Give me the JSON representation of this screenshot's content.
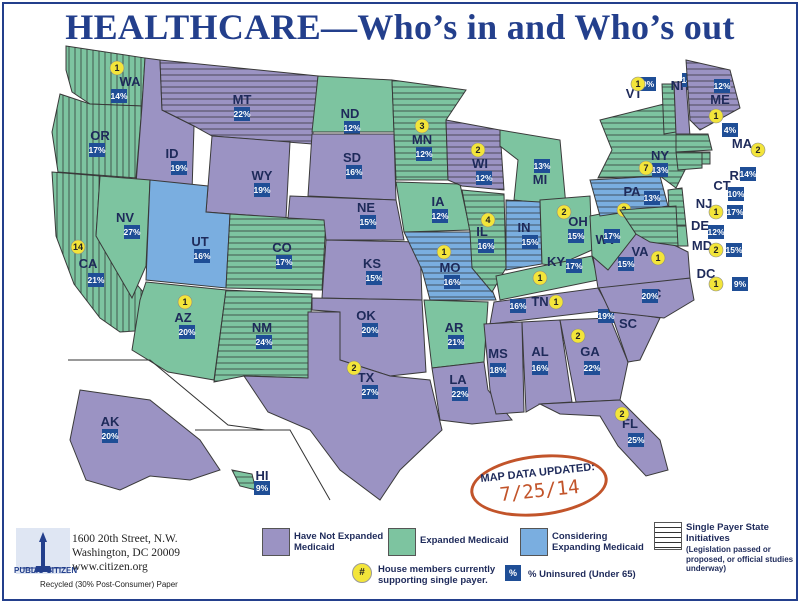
{
  "title": "HEALTHCARE—Who’s in and Who’s out",
  "colors": {
    "not_expanded": "#9b93c3",
    "expanded": "#7dc4a0",
    "considering": "#7aaee0",
    "badge": "#1f4e96",
    "single_payer_marker": "#f3e53a",
    "title": "#233f8c"
  },
  "states": [
    {
      "abbr": "WA",
      "pct": "14%",
      "status": "expanded",
      "single_payer_initiative": true,
      "house_members": "1"
    },
    {
      "abbr": "OR",
      "pct": "17%",
      "status": "expanded",
      "single_payer_initiative": true
    },
    {
      "abbr": "CA",
      "pct": "21%",
      "status": "expanded",
      "single_payer_initiative": true,
      "house_members": "14"
    },
    {
      "abbr": "ID",
      "pct": "19%",
      "status": "not_expanded"
    },
    {
      "abbr": "NV",
      "pct": "27%",
      "status": "expanded"
    },
    {
      "abbr": "MT",
      "pct": "22%",
      "status": "not_expanded",
      "single_payer_initiative": true
    },
    {
      "abbr": "WY",
      "pct": "19%",
      "status": "not_expanded"
    },
    {
      "abbr": "UT",
      "pct": "16%",
      "status": "considering"
    },
    {
      "abbr": "AZ",
      "pct": "20%",
      "status": "expanded",
      "house_members": "1"
    },
    {
      "abbr": "CO",
      "pct": "17%",
      "status": "expanded",
      "single_payer_initiative": true
    },
    {
      "abbr": "NM",
      "pct": "24%",
      "status": "expanded",
      "single_payer_initiative": true
    },
    {
      "abbr": "ND",
      "pct": "12%",
      "status": "expanded"
    },
    {
      "abbr": "SD",
      "pct": "16%",
      "status": "not_expanded"
    },
    {
      "abbr": "NE",
      "pct": "15%",
      "status": "not_expanded"
    },
    {
      "abbr": "KS",
      "pct": "15%",
      "status": "not_expanded"
    },
    {
      "abbr": "OK",
      "pct": "20%",
      "status": "not_expanded"
    },
    {
      "abbr": "TX",
      "pct": "27%",
      "status": "not_expanded",
      "house_members": "2"
    },
    {
      "abbr": "MN",
      "pct": "12%",
      "status": "expanded",
      "single_payer_initiative": true,
      "house_members": "3"
    },
    {
      "abbr": "IA",
      "pct": "12%",
      "status": "expanded"
    },
    {
      "abbr": "MO",
      "pct": "16%",
      "status": "considering",
      "single_payer_initiative": true,
      "house_members": "1"
    },
    {
      "abbr": "AR",
      "pct": "21%",
      "status": "expanded"
    },
    {
      "abbr": "LA",
      "pct": "22%",
      "status": "not_expanded"
    },
    {
      "abbr": "WI",
      "pct": "12%",
      "status": "not_expanded",
      "single_payer_initiative": true,
      "house_members": "2"
    },
    {
      "abbr": "IL",
      "pct": "16%",
      "status": "expanded",
      "single_payer_initiative": true,
      "house_members": "4"
    },
    {
      "abbr": "MI",
      "pct": "13%",
      "status": "expanded"
    },
    {
      "abbr": "IN",
      "pct": "15%",
      "status": "considering",
      "single_payer_initiative": true
    },
    {
      "abbr": "OH",
      "pct": "15%",
      "status": "expanded",
      "house_members": "2"
    },
    {
      "abbr": "KY",
      "pct": "17%",
      "status": "expanded",
      "house_members": "1"
    },
    {
      "abbr": "TN",
      "pct": "16%",
      "status": "not_expanded",
      "house_members": "1"
    },
    {
      "abbr": "MS",
      "pct": "18%",
      "status": "not_expanded"
    },
    {
      "abbr": "AL",
      "pct": "16%",
      "status": "not_expanded"
    },
    {
      "abbr": "GA",
      "pct": "22%",
      "status": "not_expanded",
      "house_members": "2"
    },
    {
      "abbr": "FL",
      "pct": "25%",
      "status": "not_expanded",
      "house_members": "2"
    },
    {
      "abbr": "SC",
      "pct": "19%",
      "status": "not_expanded"
    },
    {
      "abbr": "NC",
      "pct": "20%",
      "status": "not_expanded"
    },
    {
      "abbr": "VA",
      "pct": "15%",
      "status": "not_expanded",
      "house_members": "1"
    },
    {
      "abbr": "WV",
      "pct": "17%",
      "status": "expanded"
    },
    {
      "abbr": "PA",
      "pct": "13%",
      "status": "considering",
      "single_payer_initiative": true,
      "house_members": "3"
    },
    {
      "abbr": "NY",
      "pct": "13%",
      "status": "expanded",
      "single_payer_initiative": true,
      "house_members": "7"
    },
    {
      "abbr": "VT",
      "pct": "9%",
      "status": "expanded",
      "single_payer_initiative": true,
      "house_members": "1"
    },
    {
      "abbr": "NH",
      "pct": "14%",
      "status": "not_expanded"
    },
    {
      "abbr": "ME",
      "pct": "12%",
      "status": "not_expanded",
      "single_payer_initiative": true,
      "house_members": "1"
    },
    {
      "abbr": "MA",
      "pct": "4%",
      "status": "expanded",
      "single_payer_initiative": true,
      "house_members": "2"
    },
    {
      "abbr": "RI",
      "pct": "14%",
      "status": "expanded",
      "single_payer_initiative": true
    },
    {
      "abbr": "CT",
      "pct": "10%",
      "status": "expanded",
      "single_payer_initiative": true
    },
    {
      "abbr": "NJ",
      "pct": "17%",
      "status": "expanded",
      "single_payer_initiative": true,
      "house_members": "1"
    },
    {
      "abbr": "DE",
      "pct": "12%",
      "status": "expanded"
    },
    {
      "abbr": "MD",
      "pct": "15%",
      "status": "expanded",
      "single_payer_initiative": true,
      "house_members": "2"
    },
    {
      "abbr": "DC",
      "pct": "9%",
      "status": "expanded",
      "house_members": "1"
    },
    {
      "abbr": "AK",
      "pct": "20%",
      "status": "not_expanded"
    },
    {
      "abbr": "HI",
      "pct": "9%",
      "status": "expanded",
      "single_payer_initiative": true
    }
  ],
  "stamp": {
    "heading": "MAP DATA UPDATED:",
    "date": "7/25/14"
  },
  "legend": {
    "not_expanded": "Have Not Expanded Medicaid",
    "expanded": "Expanded Medicaid",
    "considering": "Considering Expanding Medicaid",
    "single_payer_title": "Single Payer State Initiatives",
    "single_payer_note": "(Legislation passed or proposed, or official studies underway)",
    "house_symbol": "#",
    "house_text": "House members currently supporting single payer.",
    "uninsured_symbol": "%",
    "uninsured_text": "% Uninsured (Under 65)"
  },
  "footer": {
    "address_line1": "1600 20th Street, N.W.",
    "address_line2": "Washington, DC 20009",
    "website": "www.citizen.org",
    "recycled": "Recycled (30% Post-Consumer) Paper",
    "org_name": "PUBLIC CITIZEN"
  }
}
